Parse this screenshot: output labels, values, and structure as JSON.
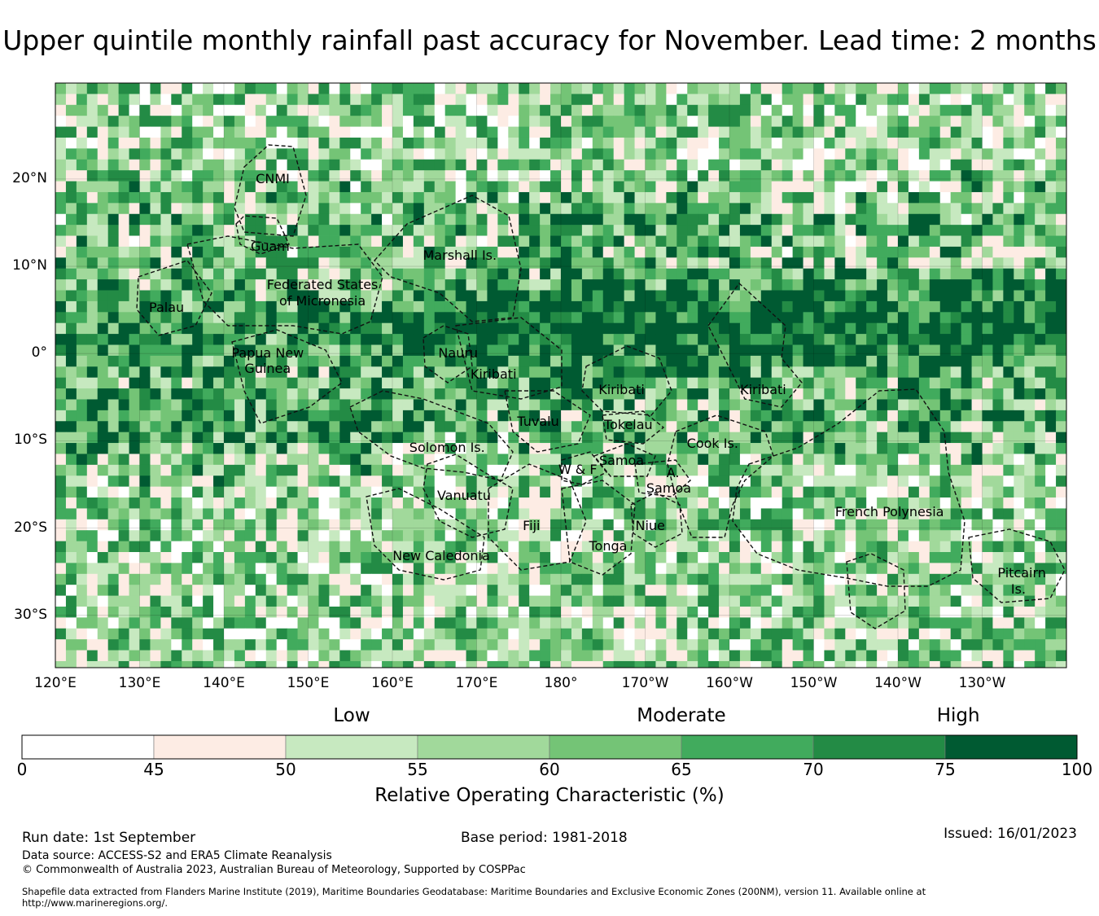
{
  "title": "Upper quintile monthly rainfall past accuracy for November. Lead time: 2 months",
  "map": {
    "lon_range": [
      120,
      240
    ],
    "lat_range": [
      -36,
      31
    ],
    "lon_ticks": [
      {
        "lon": 120,
        "label": "120°E"
      },
      {
        "lon": 130,
        "label": "130°E"
      },
      {
        "lon": 140,
        "label": "140°E"
      },
      {
        "lon": 150,
        "label": "150°E"
      },
      {
        "lon": 160,
        "label": "160°E"
      },
      {
        "lon": 170,
        "label": "170°E"
      },
      {
        "lon": 180,
        "label": "180°"
      },
      {
        "lon": 190,
        "label": "170°W"
      },
      {
        "lon": 200,
        "label": "160°W"
      },
      {
        "lon": 210,
        "label": "150°W"
      },
      {
        "lon": 220,
        "label": "140°W"
      },
      {
        "lon": 230,
        "label": "130°W"
      }
    ],
    "lat_ticks": [
      {
        "lat": 20,
        "label": "20°N"
      },
      {
        "lat": 10,
        "label": "10°N"
      },
      {
        "lat": 0,
        "label": "0°"
      },
      {
        "lat": -10,
        "label": "10°S"
      },
      {
        "lat": -20,
        "label": "20°S"
      },
      {
        "lat": -30,
        "label": "30°S"
      }
    ],
    "regions": [
      {
        "name": "CNMI",
        "lon": 145.8,
        "lat": 20.0
      },
      {
        "name": "Guam",
        "lon": 145.5,
        "lat": 12.2
      },
      {
        "name": "Marshall Is.",
        "lon": 168.0,
        "lat": 11.2
      },
      {
        "name": "Federated States",
        "lon": 151.7,
        "lat": 7.9
      },
      {
        "name": "of Micronesia",
        "lon": 151.7,
        "lat": 6.0
      },
      {
        "name": "Palau",
        "lon": 133.2,
        "lat": 5.2
      },
      {
        "name": "Papua New",
        "lon": 145.2,
        "lat": 0.0
      },
      {
        "name": "Guinea",
        "lon": 145.2,
        "lat": -1.8
      },
      {
        "name": "Nauru",
        "lon": 167.8,
        "lat": 0.0
      },
      {
        "name": "Kiribati",
        "lon": 172.0,
        "lat": -2.4
      },
      {
        "name": "Kiribati",
        "lon": 187.2,
        "lat": -4.2
      },
      {
        "name": "Kiribati",
        "lon": 204.0,
        "lat": -4.2
      },
      {
        "name": "Tuvalu",
        "lon": 177.3,
        "lat": -7.8
      },
      {
        "name": "Tokelau",
        "lon": 188.0,
        "lat": -8.2
      },
      {
        "name": "Solomon Is.",
        "lon": 166.5,
        "lat": -10.8
      },
      {
        "name": "Cook Is.",
        "lon": 198.0,
        "lat": -10.3
      },
      {
        "name": "Samoa",
        "lon": 187.2,
        "lat": -12.3
      },
      {
        "name": "W & F",
        "lon": 182.0,
        "lat": -13.3
      },
      {
        "name": "A.",
        "lon": 193.3,
        "lat": -13.7
      },
      {
        "name": "Samoa",
        "lon": 192.8,
        "lat": -15.5
      },
      {
        "name": "Vanuatu",
        "lon": 168.5,
        "lat": -16.3
      },
      {
        "name": "French Polynesia",
        "lon": 219.0,
        "lat": -18.2
      },
      {
        "name": "Fiji",
        "lon": 176.5,
        "lat": -19.8
      },
      {
        "name": "Niue",
        "lon": 190.6,
        "lat": -19.8
      },
      {
        "name": "Tonga",
        "lon": 185.6,
        "lat": -22.1
      },
      {
        "name": "New Caledonia",
        "lon": 165.8,
        "lat": -23.2
      },
      {
        "name": "Pitcairn",
        "lon": 234.7,
        "lat": -25.2
      },
      {
        "name": "Is.",
        "lon": 234.3,
        "lat": -27.0
      }
    ]
  },
  "colorbar": {
    "categories": [
      {
        "label": "Low",
        "value": 52.5
      },
      {
        "label": "Moderate",
        "value": 65
      },
      {
        "label": "High",
        "value": 77.5
      }
    ],
    "bins": [
      {
        "from": 0,
        "to": 45,
        "color": "#ffffff"
      },
      {
        "from": 45,
        "to": 50,
        "color": "#fdece4"
      },
      {
        "from": 50,
        "to": 55,
        "color": "#c7e9c0"
      },
      {
        "from": 55,
        "to": 60,
        "color": "#a1d99b"
      },
      {
        "from": 60,
        "to": 65,
        "color": "#74c476"
      },
      {
        "from": 65,
        "to": 70,
        "color": "#41ab5d"
      },
      {
        "from": 70,
        "to": 75,
        "color": "#238b45"
      },
      {
        "from": 75,
        "to": 100,
        "color": "#005a32"
      }
    ],
    "tick_labels": [
      "0",
      "45",
      "50",
      "55",
      "60",
      "65",
      "70",
      "75",
      "100"
    ],
    "title": "Relative Operating Characteristic (%)"
  },
  "footer": {
    "run_date": "Run date: 1st September",
    "base_period": "Base period: 1981-2018",
    "issued": "Issued: 16/01/2023",
    "data_source": "Data source: ACCESS-S2 and ERA5 Climate Reanalysis",
    "copyright": "© Commonwealth of Australia 2023, Australian Bureau of Meteorology, Supported by COSPPac",
    "shapefile_line1": "Shapefile data extracted from Flanders Marine Institute (2019), Maritime Boundaries Geodatabase: Maritime Boundaries and Exclusive Economic Zones (200NM), version 11. Available online at",
    "shapefile_line2": "http://www.marineregions.org/."
  }
}
